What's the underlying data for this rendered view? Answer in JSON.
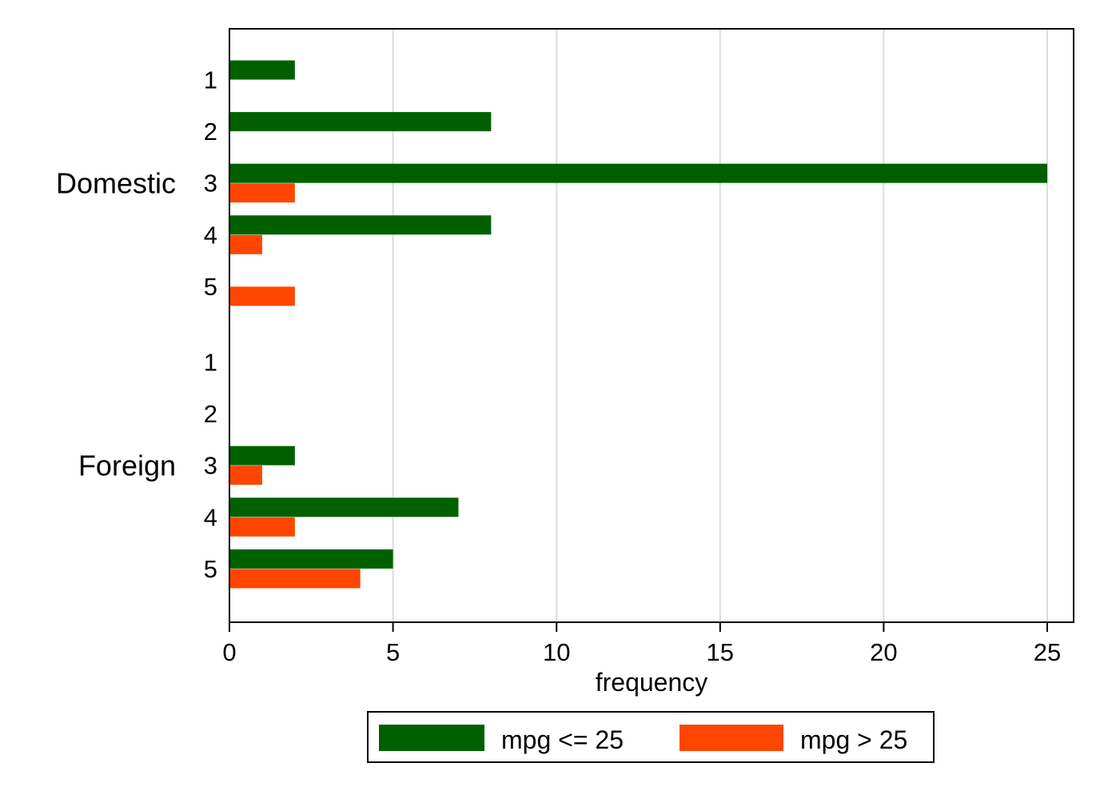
{
  "chart_data": {
    "type": "bar",
    "orientation": "horizontal",
    "xlabel": "frequency",
    "xlim": [
      0,
      25
    ],
    "xticks": [
      0,
      5,
      10,
      15,
      20,
      25
    ],
    "grid": "vertical",
    "groups": [
      {
        "name": "Domestic",
        "categories": [
          "1",
          "2",
          "3",
          "4",
          "5"
        ],
        "series_values": [
          [
            2,
            8,
            25,
            8,
            0
          ],
          [
            0,
            0,
            2,
            1,
            2
          ]
        ]
      },
      {
        "name": "Foreign",
        "categories": [
          "1",
          "2",
          "3",
          "4",
          "5"
        ],
        "series_values": [
          [
            0,
            0,
            2,
            7,
            5
          ],
          [
            0,
            0,
            1,
            2,
            4
          ]
        ]
      }
    ],
    "series": [
      {
        "name": "mpg <= 25",
        "color": "#006000"
      },
      {
        "name": "mpg > 25",
        "color": "#ff4500"
      }
    ],
    "legend_position": "bottom"
  }
}
